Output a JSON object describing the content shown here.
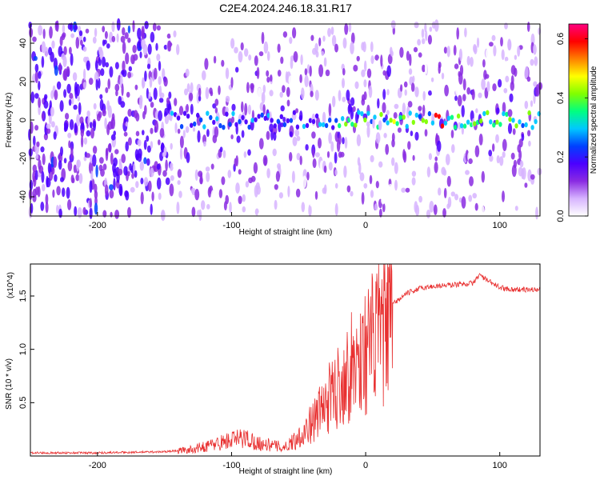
{
  "chart_data": [
    {
      "type": "heatmap",
      "title": "C2E4.2024.246.18.31.R17",
      "xlabel": "Height of straight line (km)",
      "ylabel": "Frequency (Hz)",
      "xlim": [
        -250,
        130
      ],
      "ylim": [
        -50,
        50
      ],
      "xticks": [
        -200,
        -100,
        0,
        100
      ],
      "yticks": [
        -40,
        -20,
        0,
        20,
        40
      ],
      "colorbar": {
        "label": "Normalized spectral amplitude",
        "range": [
          0.0,
          0.65
        ],
        "ticks": [
          "0.0",
          "0.2",
          "0.4",
          "0.6"
        ],
        "colors": [
          "#ffffff",
          "#d7b4ff",
          "#8a2be2",
          "#4b00ff",
          "#0040ff",
          "#00c8ff",
          "#00ff80",
          "#80ff00",
          "#ffff00",
          "#ff8000",
          "#ff0000",
          "#ff0080"
        ]
      },
      "features": {
        "noisy_region_x": [
          -250,
          -145
        ],
        "carrier_band_hz": [
          -4,
          4
        ],
        "peak_amplitude": 0.62,
        "peak_x": 55
      }
    },
    {
      "type": "line",
      "xlabel": "Height of straight line (km)",
      "ylabel": "SNR (10 * v/v)",
      "y_scale_note": "(x10^4)",
      "xlim": [
        -250,
        130
      ],
      "ylim": [
        0,
        1.8
      ],
      "xticks": [
        -200,
        -100,
        0,
        100
      ],
      "yticks": [
        "0.5",
        "1.0",
        "1.5"
      ],
      "grid": false,
      "series": [
        {
          "color": "#e83030",
          "x": [
            -250,
            -200,
            -150,
            -130,
            -110,
            -100,
            -90,
            -80,
            -60,
            -50,
            -40,
            -30,
            -20,
            -10,
            0,
            10,
            20,
            30,
            40,
            50,
            60,
            70,
            80,
            85,
            90,
            100,
            110,
            130
          ],
          "y": [
            0.03,
            0.03,
            0.04,
            0.06,
            0.12,
            0.15,
            0.17,
            0.12,
            0.08,
            0.2,
            0.35,
            0.55,
            0.75,
            0.95,
            1.1,
            1.3,
            1.42,
            1.52,
            1.57,
            1.59,
            1.6,
            1.61,
            1.62,
            1.7,
            1.65,
            1.58,
            1.56,
            1.56
          ]
        }
      ]
    }
  ]
}
